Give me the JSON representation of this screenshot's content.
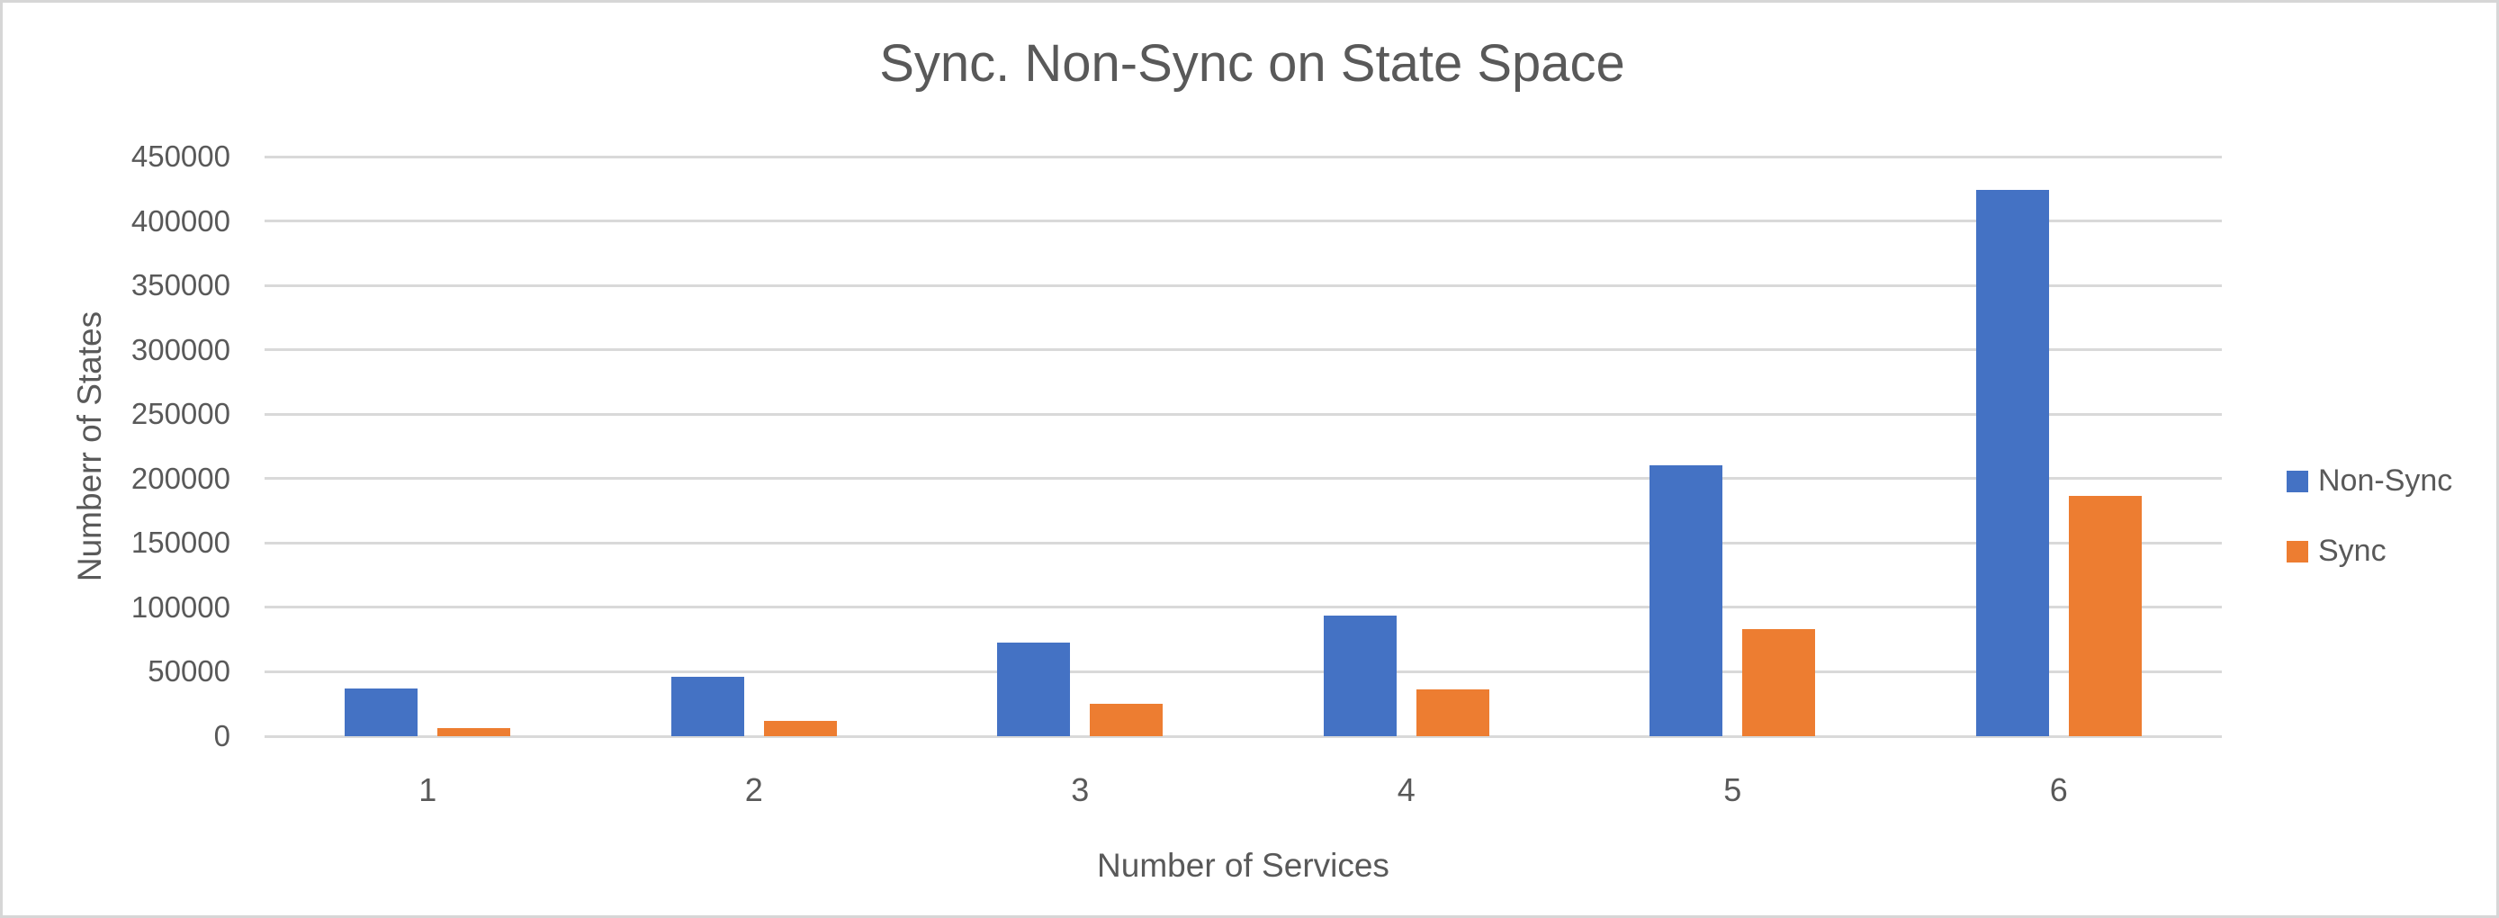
{
  "chart_data": {
    "type": "bar",
    "title": "Sync. Non-Sync on State Space",
    "xlabel": "Number of Services",
    "ylabel": "Numberr of States",
    "categories": [
      "1",
      "2",
      "3",
      "4",
      "5",
      "6"
    ],
    "series": [
      {
        "name": "Non-Sync",
        "color": "#4472C4",
        "values": [
          37000,
          46000,
          72500,
          93500,
          210000,
          424000
        ]
      },
      {
        "name": "Sync",
        "color": "#ED7D31",
        "values": [
          6500,
          12000,
          25000,
          36000,
          83000,
          186500
        ]
      }
    ],
    "ylim": [
      0,
      450000
    ],
    "yticks": [
      0,
      50000,
      100000,
      150000,
      200000,
      250000,
      300000,
      350000,
      400000,
      450000
    ],
    "grid": true,
    "legend_position": "right",
    "colors": {
      "text": "#595959",
      "gridline": "#d9d9d9",
      "background": "#ffffff",
      "frame_border": "#d6d6d6"
    }
  }
}
